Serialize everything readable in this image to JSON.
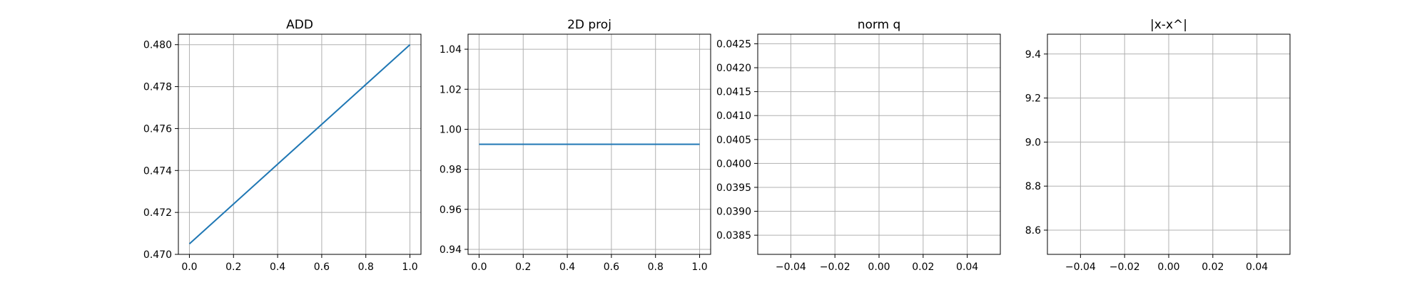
{
  "chart_data": [
    {
      "type": "line",
      "title": "ADD",
      "xlabel": "",
      "ylabel": "",
      "xlim": [
        -0.05,
        1.05
      ],
      "ylim": [
        0.47,
        0.4805
      ],
      "xticks": [
        "0.0",
        "0.2",
        "0.4",
        "0.6",
        "0.8",
        "1.0"
      ],
      "yticks": [
        "0.470",
        "0.472",
        "0.474",
        "0.476",
        "0.478",
        "0.480"
      ],
      "grid": true,
      "series": [
        {
          "x": [
            0,
            1
          ],
          "y": [
            0.4705,
            0.48
          ],
          "color": "#1f77b4"
        }
      ]
    },
    {
      "type": "line",
      "title": "2D proj",
      "xlabel": "",
      "ylabel": "",
      "xlim": [
        -0.05,
        1.05
      ],
      "ylim": [
        0.9375,
        1.0475
      ],
      "xticks": [
        "0.0",
        "0.2",
        "0.4",
        "0.6",
        "0.8",
        "1.0"
      ],
      "yticks": [
        "0.94",
        "0.96",
        "0.98",
        "1.00",
        "1.02",
        "1.04"
      ],
      "grid": true,
      "series": [
        {
          "x": [
            0,
            1
          ],
          "y": [
            0.9925,
            0.9925
          ],
          "color": "#1f77b4"
        }
      ]
    },
    {
      "type": "line",
      "title": "norm q",
      "xlabel": "",
      "ylabel": "",
      "xlim": [
        -0.055,
        0.055
      ],
      "ylim": [
        0.0381,
        0.0427
      ],
      "xticks": [
        "−0.04",
        "−0.02",
        "0.00",
        "0.02",
        "0.04"
      ],
      "yticks": [
        "0.0385",
        "0.0390",
        "0.0395",
        "0.0400",
        "0.0405",
        "0.0410",
        "0.0415",
        "0.0420",
        "0.0425"
      ],
      "grid": true,
      "series": []
    },
    {
      "type": "line",
      "title": "|x-x^|",
      "xlabel": "",
      "ylabel": "",
      "xlim": [
        -0.055,
        0.055
      ],
      "ylim": [
        8.49,
        9.49
      ],
      "xticks": [
        "−0.04",
        "−0.02",
        "0.00",
        "0.02",
        "0.04"
      ],
      "yticks": [
        "8.6",
        "8.8",
        "9.0",
        "9.2",
        "9.4"
      ],
      "grid": true,
      "series": []
    }
  ]
}
